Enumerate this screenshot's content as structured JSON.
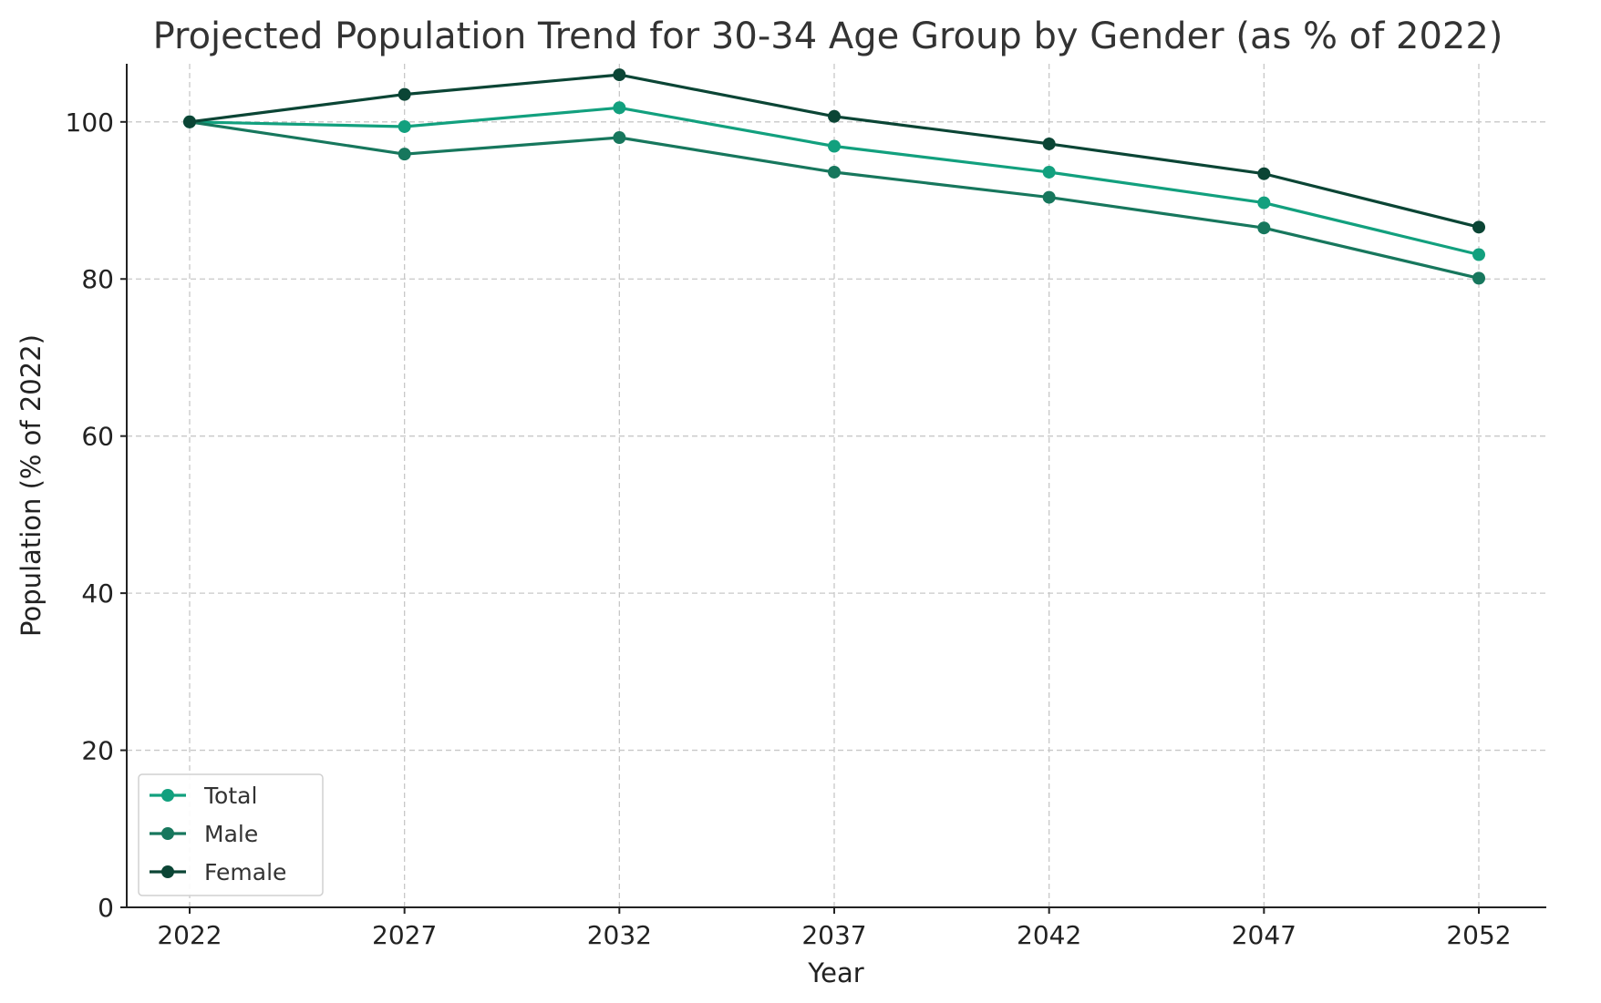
{
  "chart_data": {
    "type": "line",
    "title": "Projected Population Trend for 30-34 Age Group by Gender (as % of 2022)",
    "xlabel": "Year",
    "ylabel": "Population (% of 2022)",
    "x": [
      2022,
      2027,
      2032,
      2037,
      2042,
      2047,
      2052
    ],
    "x_tick_labels": [
      "2022",
      "2027",
      "2032",
      "2037",
      "2042",
      "2047",
      "2052"
    ],
    "ylim": [
      0,
      107.4
    ],
    "y_ticks": [
      0,
      20,
      40,
      60,
      80,
      100
    ],
    "y_tick_labels": [
      "0",
      "20",
      "40",
      "60",
      "80",
      "100"
    ],
    "grid": true,
    "legend_position": "lower-left",
    "series": [
      {
        "name": "Total",
        "color": "#12a07e",
        "values": [
          100,
          99.4,
          101.8,
          96.9,
          93.6,
          89.7,
          83.1
        ]
      },
      {
        "name": "Male",
        "color": "#17775d",
        "values": [
          100,
          95.9,
          98.0,
          93.6,
          90.4,
          86.5,
          80.1
        ]
      },
      {
        "name": "Female",
        "color": "#0b4535",
        "values": [
          100,
          103.5,
          106.0,
          100.7,
          97.2,
          93.4,
          86.6
        ]
      }
    ]
  }
}
